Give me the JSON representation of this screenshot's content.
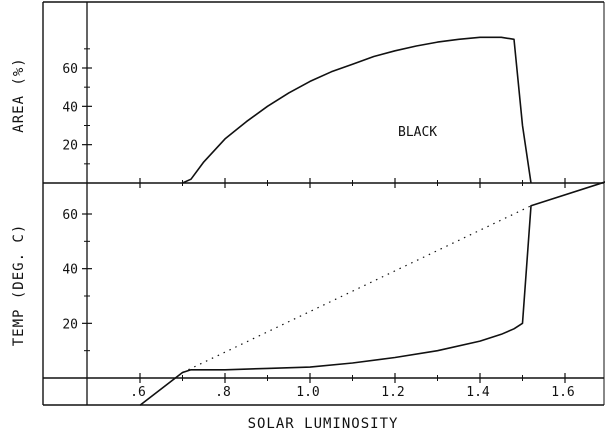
{
  "chart_data": [
    {
      "type": "line",
      "panel": "top",
      "ylabel": "AREA (%)",
      "xlim": [
        0.5,
        1.7
      ],
      "ylim": [
        -2,
        76
      ],
      "y_ticks": [
        20,
        40,
        60
      ],
      "y_tick_labels": [
        "20",
        "40",
        "60"
      ],
      "annotation": "BLACK",
      "series": [
        {
          "x": [
            0.7,
            0.72,
            0.75,
            0.8,
            0.85,
            0.9,
            0.95,
            1.0,
            1.05,
            1.1,
            1.15,
            1.2,
            1.25,
            1.3,
            1.35,
            1.4,
            1.45,
            1.48,
            1.5,
            1.52
          ],
          "y": [
            0,
            2,
            11,
            23,
            32,
            40,
            47,
            53,
            58,
            62,
            66,
            69,
            71.5,
            73.5,
            75,
            76,
            76,
            75,
            30,
            0
          ]
        }
      ]
    },
    {
      "type": "line",
      "panel": "bottom",
      "ylabel": "TEMP (DEG. C)",
      "xlabel": "SOLAR LUMINOSITY",
      "xlim": [
        0.5,
        1.7
      ],
      "ylim": [
        -10,
        70
      ],
      "x_ticks": [
        0.6,
        0.8,
        1.0,
        1.2,
        1.4,
        1.6
      ],
      "x_tick_labels": [
        ".6",
        ".8",
        "1.0",
        "1.2",
        "1.4",
        "1.6"
      ],
      "y_ticks": [
        20,
        40,
        60
      ],
      "y_tick_labels": [
        "20",
        "40",
        "60"
      ],
      "series": [
        {
          "style": "solid",
          "x": [
            0.6,
            0.7,
            0.72,
            0.8,
            0.9,
            1.0,
            1.1,
            1.2,
            1.3,
            1.4,
            1.45,
            1.48,
            1.5,
            1.52,
            1.7
          ],
          "y": [
            -10,
            2,
            3,
            3,
            3.5,
            4,
            5.5,
            7.5,
            10,
            13.5,
            16,
            18,
            20,
            63,
            72
          ]
        },
        {
          "style": "dotted",
          "x": [
            0.7,
            1.52
          ],
          "y": [
            2,
            63
          ]
        }
      ]
    }
  ]
}
